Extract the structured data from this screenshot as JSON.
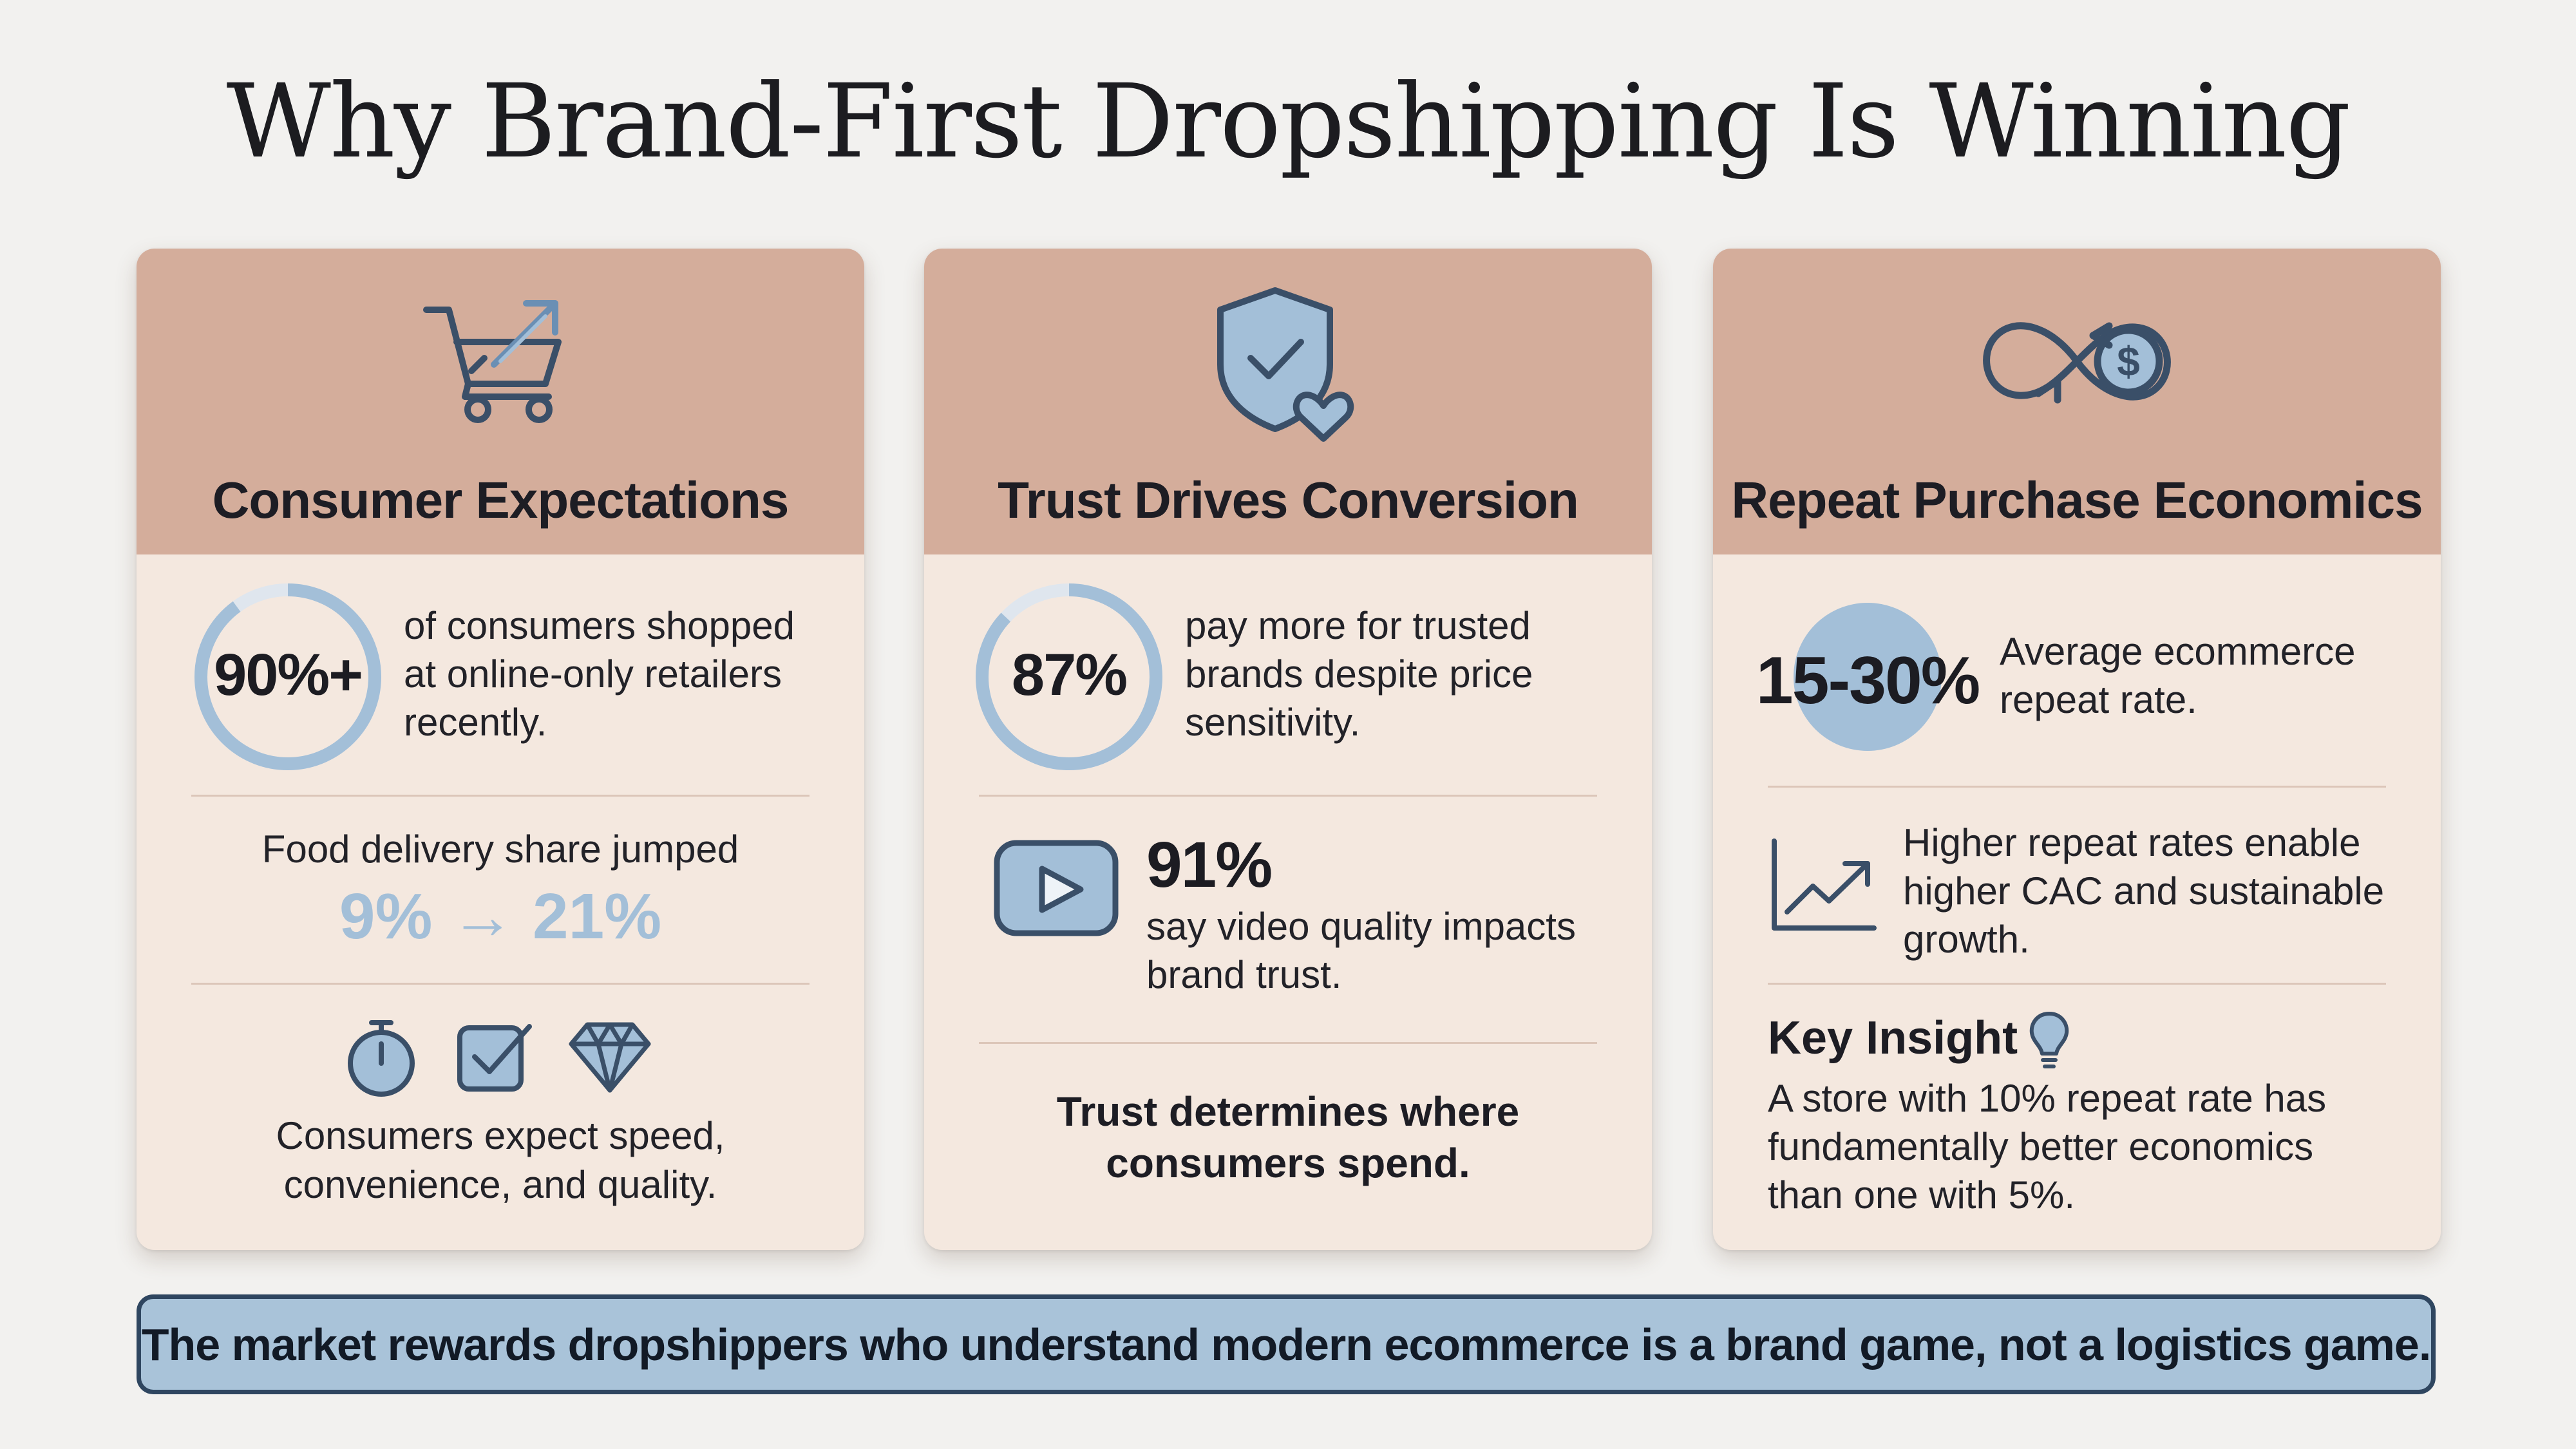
{
  "title": "Why Brand-First Dropshipping Is Winning",
  "colors": {
    "background": "#f2f1ef",
    "card_header": "#d4ad9b",
    "card_body": "#f4e8df",
    "accent_blue": "#a3bfd8",
    "icon_stroke": "#3a4f68",
    "banner_fill": "#a9c3d9",
    "banner_border": "#2f4660"
  },
  "cards": [
    {
      "icon": "shopping-cart-trend-icon",
      "title": "Consumer Expectations",
      "stat_value": "90%+",
      "stat_text": [
        "of consumers shopped",
        "at online-only retailers",
        "recently."
      ],
      "food_label": "Food delivery share jumped",
      "food_change": "9% → 21%",
      "icons": [
        "stopwatch-icon",
        "checkbox-icon",
        "diamond-icon"
      ],
      "footer": [
        "Consumers expect speed,",
        "convenience, and quality."
      ]
    },
    {
      "icon": "shield-check-heart-icon",
      "title": "Trust Drives Conversion",
      "stat_value": "87%",
      "stat_text": [
        "pay more for trusted",
        "brands despite price",
        "sensitivity."
      ],
      "video_stat": "91%",
      "video_icon": "video-play-icon",
      "video_text": [
        "say video quality impacts",
        "brand trust."
      ],
      "footer": [
        "Trust determines where",
        "consumers spend."
      ]
    },
    {
      "icon": "infinity-dollar-icon",
      "title": "Repeat Purchase Economics",
      "stat_value": "15-30%",
      "stat_text": [
        "Average ecommerce",
        "repeat rate."
      ],
      "growth_icon": "growth-chart-icon",
      "growth_text": [
        "Higher repeat rates enable",
        "higher CAC and sustainable",
        "growth."
      ],
      "insight_title": "Key Insight",
      "insight_icon": "lightbulb-icon",
      "insight_text": [
        "A store with 10% repeat rate has",
        "fundamentally better economics",
        "than one with 5%."
      ]
    }
  ],
  "banner": "The market rewards dropshippers who understand modern ecommerce is a brand game, not a logistics game."
}
